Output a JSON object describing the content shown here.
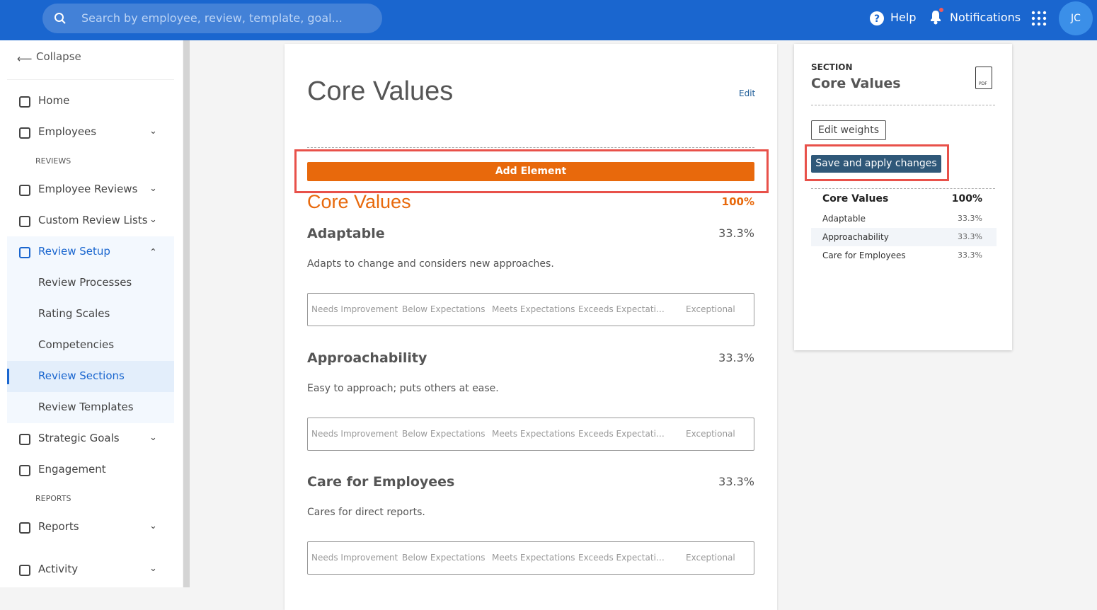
{
  "topbar": {
    "search_placeholder": "Search by employee, review, template, goal...",
    "help": "Help",
    "notifications": "Notifications",
    "avatar": "JC"
  },
  "sidebar": {
    "collapse": "Collapse",
    "items": [
      "Home",
      "Employees",
      "REVIEWS",
      "Employee Reviews",
      "Custom Review Lists",
      "Review Setup",
      "Review Processes",
      "Rating Scales",
      "Competencies",
      "Review Sections",
      "Review Templates",
      "Strategic Goals",
      "Engagement",
      "REPORTS",
      "Reports",
      "Activity"
    ]
  },
  "section": {
    "title": "Core Values",
    "edit": "Edit",
    "add_element": "Add Element",
    "heading": "Core Values",
    "weight": "100%",
    "elements": [
      {
        "name": "Adaptable",
        "weight": "33.3%",
        "description": "Adapts to change and considers new approaches.",
        "scale": [
          "Needs Improvement",
          "Below Expectations",
          "Meets Expectations",
          "Exceeds Expectati…",
          "Exceptional"
        ]
      },
      {
        "name": "Approachability",
        "weight": "33.3%",
        "description": "Easy to approach; puts others at ease.",
        "scale": [
          "Needs Improvement",
          "Below Expectations",
          "Meets Expectations",
          "Exceeds Expectati…",
          "Exceptional"
        ]
      },
      {
        "name": "Care for Employees",
        "weight": "33.3%",
        "description": "Cares for direct reports.",
        "scale": [
          "Needs Improvement",
          "Below Expectations",
          "Meets Expectations",
          "Exceeds Expectati…",
          "Exceptional"
        ]
      }
    ]
  },
  "summary": {
    "label": "SECTION",
    "title": "Core Values",
    "pdf_icon": "PDF",
    "edit_weights": "Edit weights",
    "save": "Save and apply changes",
    "total_name": "Core Values",
    "total_weight": "100%",
    "rows": [
      {
        "name": "Adaptable",
        "weight": "33.3%"
      },
      {
        "name": "Approachability",
        "weight": "33.3%"
      },
      {
        "name": "Care for Employees",
        "weight": "33.3%"
      }
    ]
  }
}
